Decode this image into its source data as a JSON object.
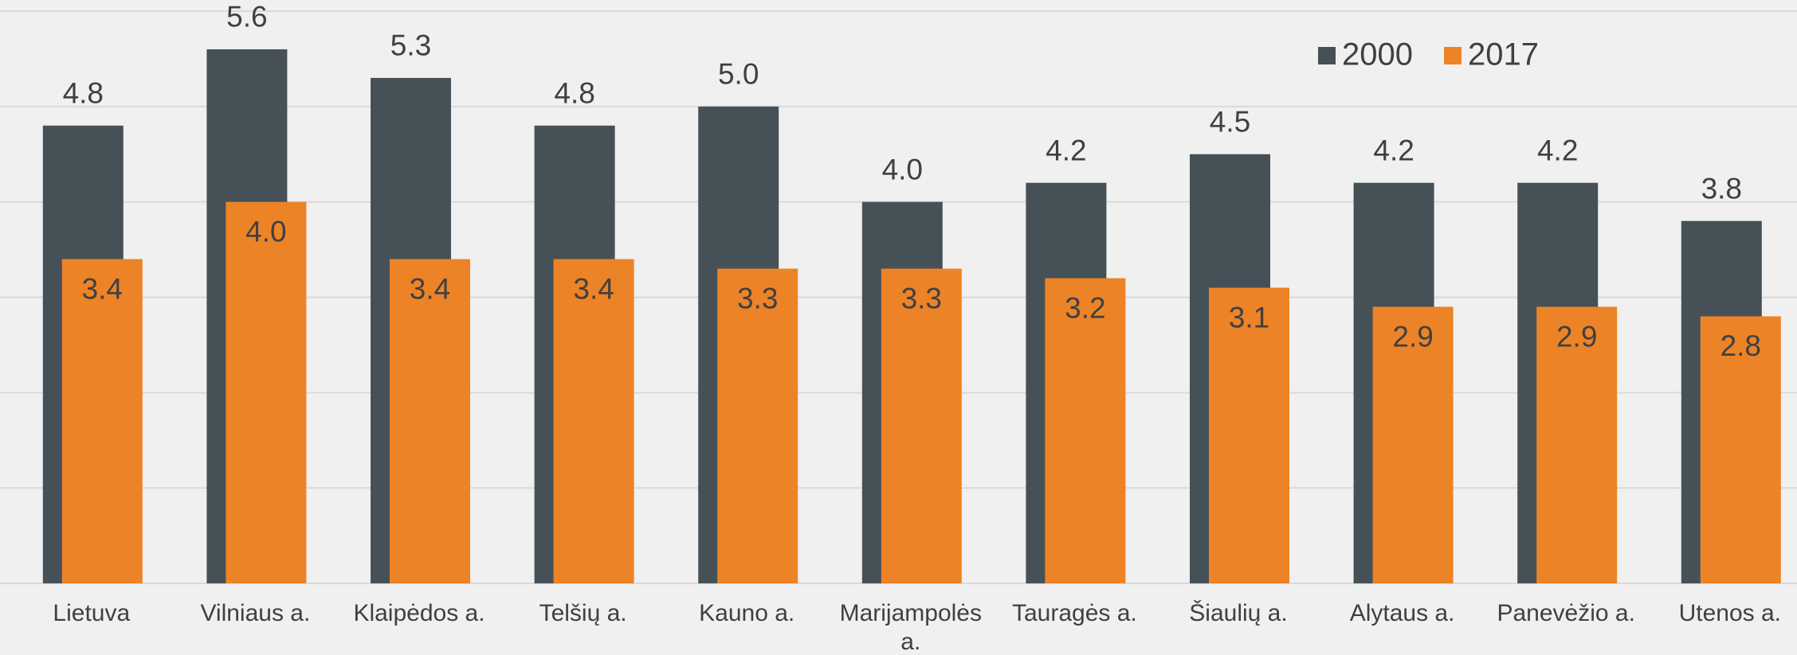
{
  "chart_data": {
    "type": "bar",
    "categories": [
      "Lietuva",
      "Vilniaus a.",
      "Klaipėdos a.",
      "Telšių a.",
      "Kauno a.",
      "Marijampolės a.",
      "Tauragės a.",
      "Šiaulių a.",
      "Alytaus a.",
      "Panevėžio a.",
      "Utenos a."
    ],
    "series": [
      {
        "name": "2000",
        "color": "#465157",
        "values": [
          4.8,
          5.6,
          5.3,
          4.8,
          5.0,
          4.0,
          4.2,
          4.5,
          4.2,
          4.2,
          3.8
        ],
        "value_labels": [
          "4.8",
          "5.6",
          "5.3",
          "4.8",
          "5.0",
          "4.0",
          "4.2",
          "4.5",
          "4.2",
          "4.2",
          "3.8"
        ]
      },
      {
        "name": "2017",
        "color": "#ED8327",
        "values": [
          3.4,
          4.0,
          3.4,
          3.4,
          3.3,
          3.3,
          3.2,
          3.1,
          2.9,
          2.9,
          2.8
        ],
        "value_labels": [
          "3.4",
          "4.0",
          "3.4",
          "3.4",
          "3.3",
          "3.3",
          "3.2",
          "3.1",
          "2.9",
          "2.9",
          "2.8"
        ]
      }
    ],
    "ylim": [
      0,
      6
    ],
    "yticks": [
      0,
      1,
      2,
      3,
      4,
      5,
      6
    ],
    "grid": true,
    "legend": "top-right"
  }
}
